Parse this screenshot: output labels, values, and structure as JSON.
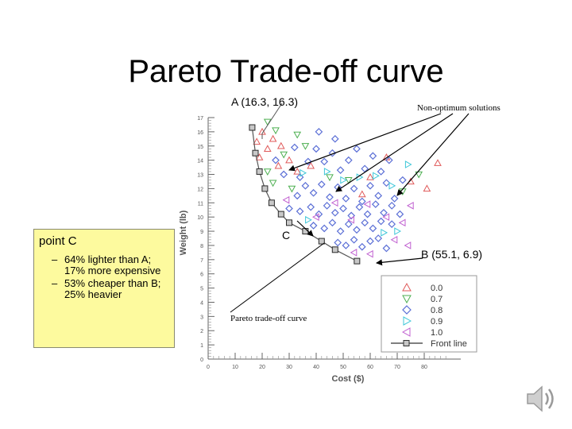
{
  "slide": {
    "title": "Pareto Trade-off curve",
    "callout": {
      "heading": "point C",
      "bullets": [
        {
          "marker": "–",
          "text": "64% lighter than A; 17% more expensive"
        },
        {
          "marker": "–",
          "text": "53% cheaper than B; 25% heavier"
        }
      ]
    }
  },
  "chart_data": {
    "type": "scatter",
    "xlabel": "Cost ($)",
    "ylabel": "Weight (lb)",
    "xlim": [
      0,
      90
    ],
    "ylim": [
      0,
      17
    ],
    "x_ticks": [
      0,
      10,
      20,
      30,
      40,
      50,
      60,
      70,
      80
    ],
    "y_ticks": [
      0,
      1,
      2,
      3,
      4,
      5,
      6,
      7,
      8,
      9,
      10,
      11,
      12,
      13,
      14,
      15,
      16,
      17
    ],
    "grid": false,
    "legend_position": "lower-right",
    "legend": [
      {
        "label": "0.0",
        "marker": "triangle-up",
        "color": "#e05a5a"
      },
      {
        "label": "0.7",
        "marker": "triangle-down",
        "color": "#4caf50"
      },
      {
        "label": "0.8",
        "marker": "diamond",
        "color": "#5b6fd6"
      },
      {
        "label": "0.9",
        "marker": "triangle-right",
        "color": "#3fc7d9"
      },
      {
        "label": "1.0",
        "marker": "triangle-left",
        "color": "#c05fd0"
      },
      {
        "label": "Front line",
        "marker": "square-line",
        "color": "#333333"
      }
    ],
    "series": [
      {
        "name": "Front line",
        "points": [
          [
            16.3,
            16.3
          ],
          [
            17.5,
            14.5
          ],
          [
            19.0,
            13.2
          ],
          [
            21.0,
            12.0
          ],
          [
            23.5,
            11.0
          ],
          [
            27,
            10.2
          ],
          [
            30,
            9.6
          ],
          [
            36,
            9.0
          ],
          [
            42,
            8.3
          ],
          [
            47,
            7.7
          ],
          [
            55.1,
            6.9
          ]
        ]
      },
      {
        "name": "0.0",
        "points": [
          [
            18,
            15.3
          ],
          [
            20,
            16.0
          ],
          [
            22,
            14.8
          ],
          [
            19,
            14.2
          ],
          [
            24,
            15.5
          ],
          [
            27,
            15.0
          ],
          [
            30,
            14.0
          ],
          [
            26,
            13.6
          ],
          [
            33,
            13.2
          ],
          [
            38,
            13.6
          ],
          [
            60,
            12.8
          ],
          [
            66,
            14.2
          ],
          [
            75,
            12.5
          ],
          [
            81,
            12.0
          ],
          [
            85,
            13.8
          ],
          [
            57,
            11.6
          ]
        ]
      },
      {
        "name": "0.7",
        "points": [
          [
            22,
            16.7
          ],
          [
            25,
            16.1
          ],
          [
            22,
            13.2
          ],
          [
            28,
            14.4
          ],
          [
            33,
            15.8
          ],
          [
            24,
            12.4
          ],
          [
            31,
            12.0
          ],
          [
            36,
            15.0
          ],
          [
            45,
            12.8
          ],
          [
            78,
            13.0
          ],
          [
            72,
            11.8
          ],
          [
            52,
            12.6
          ]
        ]
      },
      {
        "name": "0.8",
        "points": [
          [
            25,
            14.0
          ],
          [
            28,
            13.0
          ],
          [
            32,
            14.9
          ],
          [
            34,
            12.8
          ],
          [
            37,
            13.9
          ],
          [
            40,
            14.8
          ],
          [
            43,
            13.9
          ],
          [
            46,
            14.5
          ],
          [
            49,
            13.3
          ],
          [
            52,
            14.0
          ],
          [
            55,
            14.8
          ],
          [
            58,
            13.4
          ],
          [
            61,
            14.3
          ],
          [
            64,
            13.2
          ],
          [
            67,
            14.0
          ],
          [
            33,
            11.5
          ],
          [
            36,
            12.2
          ],
          [
            39,
            11.7
          ],
          [
            42,
            12.3
          ],
          [
            45,
            11.4
          ],
          [
            48,
            12.1
          ],
          [
            51,
            11.3
          ],
          [
            54,
            12.0
          ],
          [
            57,
            11.1
          ],
          [
            60,
            12.2
          ],
          [
            63,
            11.5
          ],
          [
            66,
            12.4
          ],
          [
            69,
            11.3
          ],
          [
            72,
            12.6
          ],
          [
            30,
            10.6
          ],
          [
            34,
            10.4
          ],
          [
            38,
            10.7
          ],
          [
            41,
            10.2
          ],
          [
            44,
            10.8
          ],
          [
            47,
            10.3
          ],
          [
            50,
            10.6
          ],
          [
            53,
            10.1
          ],
          [
            56,
            10.7
          ],
          [
            59,
            10.2
          ],
          [
            62,
            10.9
          ],
          [
            65,
            10.3
          ],
          [
            68,
            10.8
          ],
          [
            39,
            9.4
          ],
          [
            43,
            9.2
          ],
          [
            46,
            9.6
          ],
          [
            49,
            9.0
          ],
          [
            52,
            9.5
          ],
          [
            55,
            9.1
          ],
          [
            58,
            9.6
          ],
          [
            61,
            9.2
          ],
          [
            64,
            9.7
          ],
          [
            68,
            9.5
          ],
          [
            71,
            10.2
          ],
          [
            48,
            8.2
          ],
          [
            51,
            8.0
          ],
          [
            54,
            8.4
          ],
          [
            57,
            7.9
          ],
          [
            60,
            8.3
          ],
          [
            63,
            8.5
          ],
          [
            66,
            7.8
          ],
          [
            47,
            15.5
          ],
          [
            41,
            16.0
          ]
        ]
      },
      {
        "name": "0.9",
        "points": [
          [
            35,
            13.1
          ],
          [
            44,
            13.2
          ],
          [
            50,
            12.6
          ],
          [
            56,
            12.8
          ],
          [
            62,
            12.9
          ],
          [
            68,
            12.2
          ],
          [
            74,
            13.7
          ],
          [
            37,
            9.8
          ],
          [
            65,
            8.9
          ],
          [
            70,
            9.0
          ]
        ]
      },
      {
        "name": "1.0",
        "points": [
          [
            29,
            11.2
          ],
          [
            40,
            10.0
          ],
          [
            47,
            11.0
          ],
          [
            53,
            9.8
          ],
          [
            59,
            10.9
          ],
          [
            66,
            10.0
          ],
          [
            72,
            9.6
          ],
          [
            75,
            10.8
          ],
          [
            60,
            7.4
          ],
          [
            54,
            7.5
          ],
          [
            69,
            8.4
          ],
          [
            74,
            8.0
          ]
        ]
      }
    ],
    "annotations": [
      {
        "text": "A (16.3, 16.3)"
      },
      {
        "text": "Non-optimum solutions"
      },
      {
        "text": "C"
      },
      {
        "text": "B (55.1, 6.9)"
      },
      {
        "text": "Pareto trade-off curve"
      }
    ]
  }
}
